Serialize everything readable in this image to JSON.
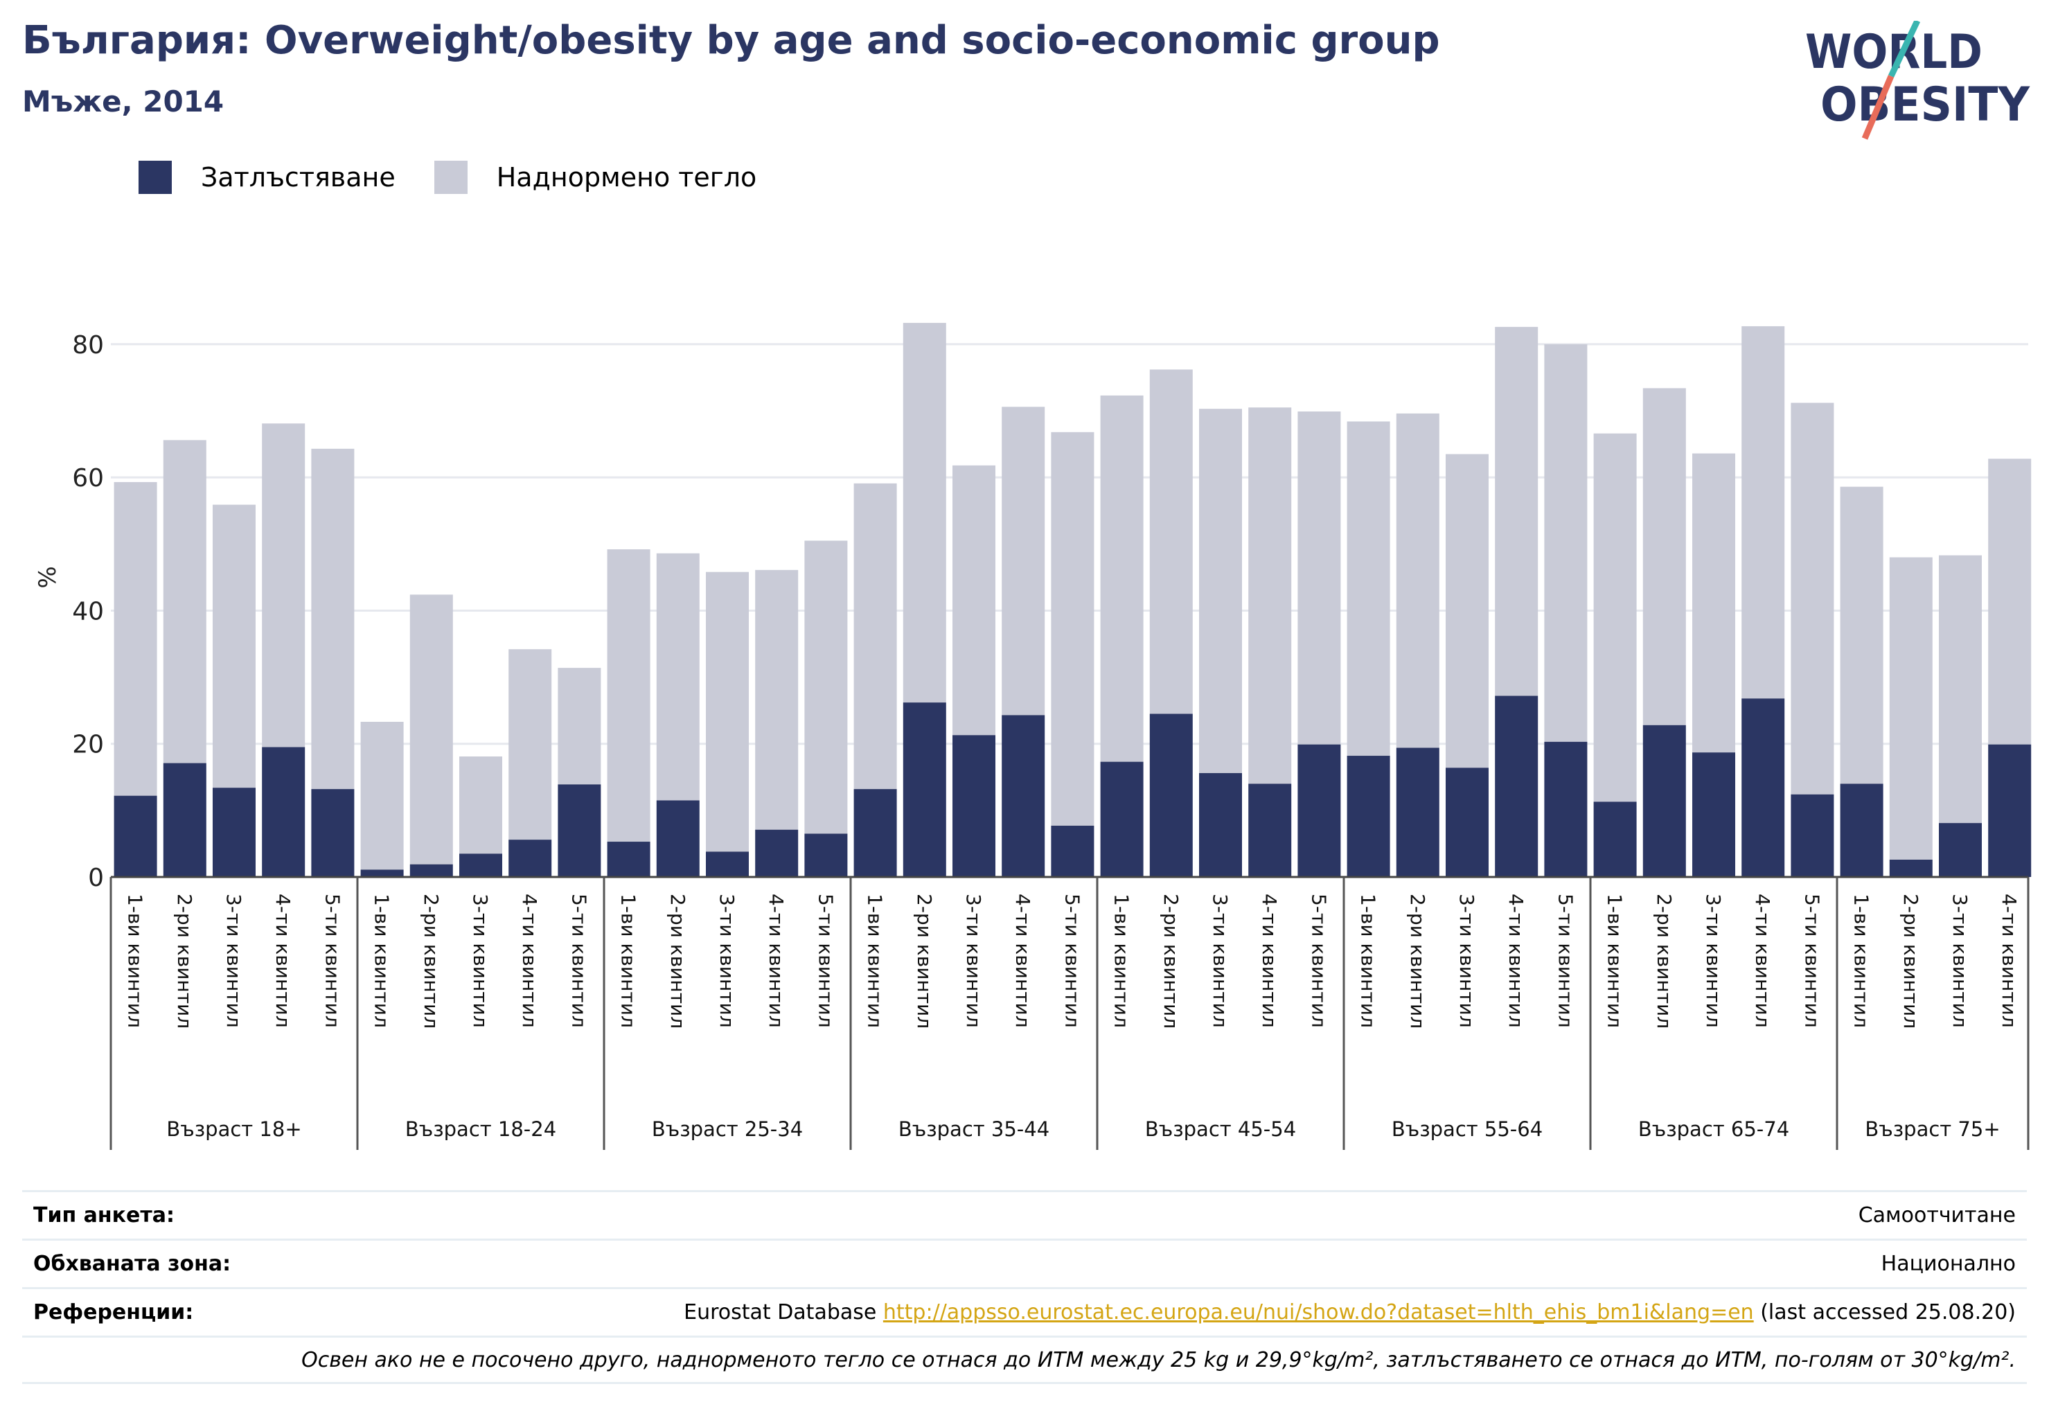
{
  "header": {
    "title": "България: Overweight/obesity by age and socio-economic group",
    "subtitle": "Мъже, 2014"
  },
  "logo": {
    "line1": "WORLD",
    "line2": "OBESITY",
    "name": "world-obesity-logo"
  },
  "colors": {
    "obesity": "#2b3663",
    "overweight": "#c9cbd7",
    "grid": "#e6e8ee",
    "logo_text": "#2b3663",
    "logo_slash_top": "#3ab5b0",
    "logo_slash_bottom": "#e86c5a"
  },
  "legend": [
    {
      "label": "Затлъстяване",
      "color": "#2b3663"
    },
    {
      "label": "Наднормено тегло",
      "color": "#c9cbd7"
    }
  ],
  "chart_data": {
    "type": "bar",
    "stacked": true,
    "ylabel": "%",
    "ylim": [
      0,
      88
    ],
    "yticks": [
      0,
      20,
      40,
      60,
      80
    ],
    "grid": true,
    "legend_position": "top-left",
    "groups": [
      {
        "label": "Възраст 18+",
        "categories": [
          "1-ви квинтил",
          "2-ри квинтил",
          "3-ти квинтил",
          "4-ти квинтил",
          "5-ти квинтил"
        ]
      },
      {
        "label": "Възраст 18-24",
        "categories": [
          "1-ви квинтил",
          "2-ри квинтил",
          "3-ти квинтил",
          "4-ти квинтил",
          "5-ти квинтил"
        ]
      },
      {
        "label": "Възраст 25-34",
        "categories": [
          "1-ви квинтил",
          "2-ри квинтил",
          "3-ти квинтил",
          "4-ти квинтил",
          "5-ти квинтил"
        ]
      },
      {
        "label": "Възраст 35-44",
        "categories": [
          "1-ви квинтил",
          "2-ри квинтил",
          "3-ти квинтил",
          "4-ти квинтил",
          "5-ти квинтил"
        ]
      },
      {
        "label": "Възраст 45-54",
        "categories": [
          "1-ви квинтил",
          "2-ри квинтил",
          "3-ти квинтил",
          "4-ти квинтил",
          "5-ти квинтил"
        ]
      },
      {
        "label": "Възраст 55-64",
        "categories": [
          "1-ви квинтил",
          "2-ри квинтил",
          "3-ти квинтил",
          "4-ти квинтил",
          "5-ти квинтил"
        ]
      },
      {
        "label": "Възраст 65-74",
        "categories": [
          "1-ви квинтил",
          "2-ри квинтил",
          "3-ти квинтил",
          "4-ти квинтил",
          "5-ти квинтил"
        ]
      },
      {
        "label": "Възраст 75+",
        "categories": [
          "1-ви квинтил",
          "2-ри квинтил",
          "3-ти квинтил",
          "4-ти квинтил"
        ]
      }
    ],
    "series": [
      {
        "name": "Затлъстяване",
        "values": [
          12.2,
          17.1,
          13.4,
          19.5,
          13.2,
          1.1,
          1.9,
          3.5,
          5.6,
          13.9,
          5.3,
          11.5,
          3.8,
          7.1,
          6.5,
          13.2,
          26.2,
          21.3,
          24.3,
          7.7,
          17.3,
          24.5,
          15.6,
          14.0,
          19.9,
          18.2,
          19.4,
          16.4,
          27.2,
          20.3,
          11.3,
          22.8,
          18.7,
          26.8,
          12.4,
          14.0,
          2.6,
          8.1,
          19.9
        ]
      },
      {
        "name": "Наднормено тегло",
        "values": [
          47.1,
          48.5,
          42.5,
          48.6,
          51.1,
          22.2,
          40.5,
          14.6,
          28.6,
          17.5,
          43.9,
          37.1,
          42.0,
          39.0,
          44.0,
          45.9,
          57.0,
          40.5,
          46.3,
          59.1,
          55.0,
          51.7,
          54.7,
          56.5,
          50.0,
          50.2,
          50.2,
          47.1,
          55.4,
          59.7,
          55.3,
          50.6,
          44.9,
          55.9,
          58.8,
          44.6,
          45.4,
          40.2,
          42.9
        ]
      }
    ]
  },
  "footer": {
    "rows": [
      {
        "label": "Тип анкета:",
        "value": "Самоотчитане"
      },
      {
        "label": "Обхваната зона:",
        "value": "Национално"
      },
      {
        "label": "Референции:",
        "value_prefix": "Eurostat Database ",
        "link": "http://appsso.eurostat.ec.europa.eu/nui/show.do?dataset=hlth_ehis_bm1i&lang=en",
        "value_suffix": " (last accessed 25.08.20)"
      }
    ],
    "note": "Освен ако не е посочено друго, наднорменото тегло се отнася до ИТМ между 25 kg и 29,9°kg/m², затлъстяването се отнася до ИТМ, по-голям от 30°kg/m²."
  }
}
